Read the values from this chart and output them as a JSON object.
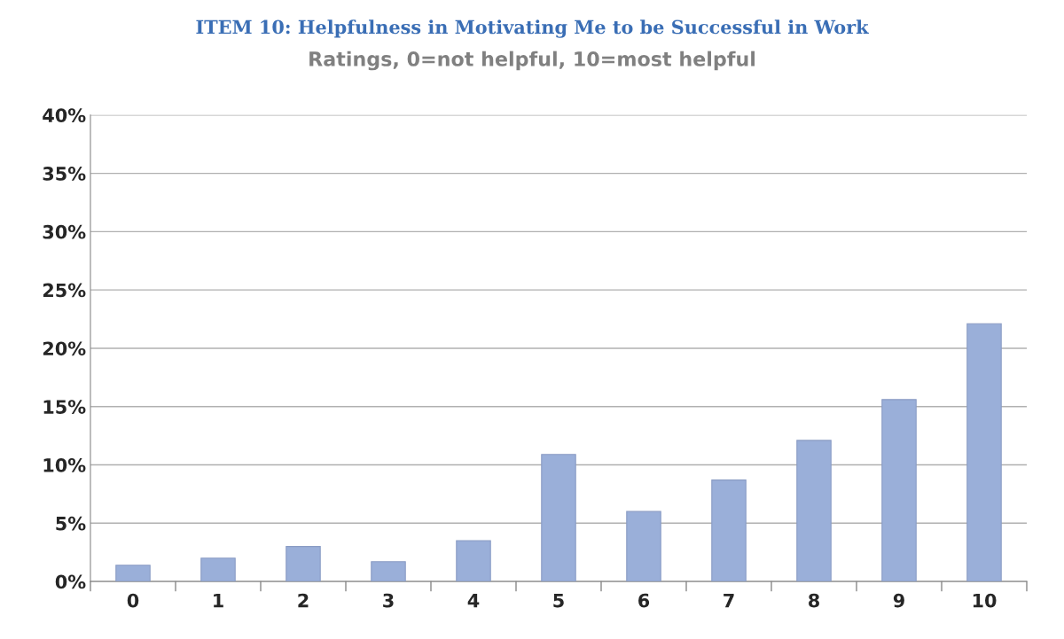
{
  "chart_data": {
    "type": "bar",
    "title": "ITEM 10: Helpfulness in Motivating Me to be Successful in Work",
    "subtitle": "Ratings, 0=not helpful, 10=most helpful",
    "categories": [
      "0",
      "1",
      "2",
      "3",
      "4",
      "5",
      "6",
      "7",
      "8",
      "9",
      "10"
    ],
    "values": [
      1.4,
      2.0,
      3.0,
      1.7,
      3.5,
      10.9,
      6.0,
      8.7,
      12.1,
      15.6,
      22.1
    ],
    "color": "#9aafd9",
    "ylim": [
      0,
      40
    ],
    "yticks": [
      {
        "value": 0,
        "label": "0%"
      },
      {
        "value": 5,
        "label": "5%"
      },
      {
        "value": 10,
        "label": "10%"
      },
      {
        "value": 15,
        "label": "15%"
      },
      {
        "value": 20,
        "label": "20%"
      },
      {
        "value": 25,
        "label": "25%"
      },
      {
        "value": 30,
        "label": "30%"
      },
      {
        "value": 35,
        "label": "35%"
      },
      {
        "value": 40,
        "label": "40%"
      }
    ],
    "grid": "y"
  }
}
